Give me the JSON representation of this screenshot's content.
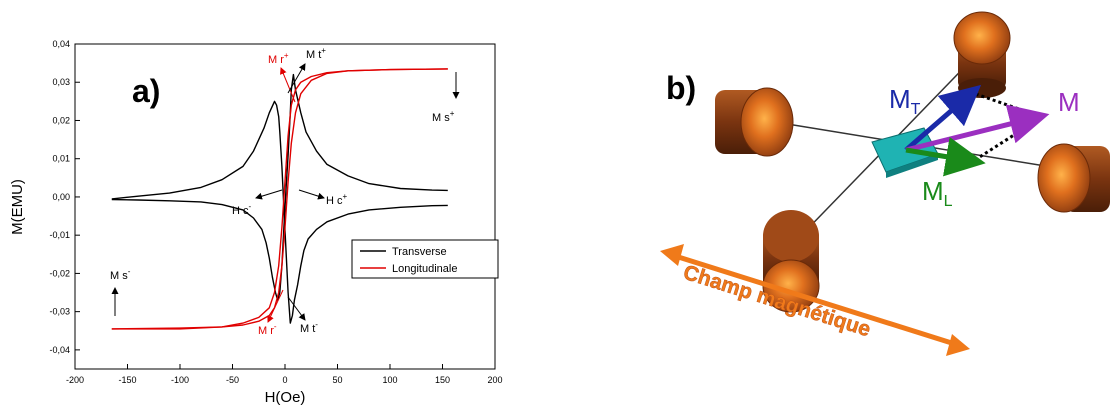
{
  "chart_data": {
    "type": "line",
    "panel_label": "a)",
    "xlabel": "H(Oe)",
    "ylabel": "M(EMU)",
    "xlim": [
      -200,
      200
    ],
    "ylim": [
      -0.045,
      0.04
    ],
    "xticks": [
      -200,
      -150,
      -100,
      -50,
      0,
      50,
      100,
      150,
      200
    ],
    "yticks": [
      -0.04,
      -0.03,
      -0.02,
      -0.01,
      0.0,
      0.01,
      0.02,
      0.03,
      0.04
    ],
    "ytick_labels": [
      "-0,04",
      "-0,03",
      "-0,02",
      "-0,01",
      "0,00",
      "0,01",
      "0,02",
      "0,03",
      "0,04"
    ],
    "grid": false,
    "legend_position": "right-center",
    "series": [
      {
        "name": "Transverse",
        "color": "#000000",
        "branches": [
          {
            "x": [
              -165,
              -140,
              -110,
              -80,
              -60,
              -40,
              -30,
              -22,
              -18,
              -15,
              -12,
              -9,
              -7,
              -5,
              -3,
              -1,
              1,
              3,
              5,
              6,
              8,
              10,
              15,
              20,
              30,
              40,
              60,
              80,
              110,
              140,
              155
            ],
            "y": [
              -0.0007,
              -0.0008,
              -0.001,
              -0.0013,
              -0.002,
              -0.0034,
              -0.0055,
              -0.0085,
              -0.012,
              -0.016,
              -0.021,
              -0.025,
              -0.027,
              -0.025,
              -0.018,
              -0.008,
              0.002,
              0.011,
              0.022,
              0.028,
              0.032,
              0.028,
              0.022,
              0.017,
              0.012,
              0.0085,
              0.0055,
              0.0035,
              0.0022,
              0.0018,
              0.0017
            ]
          },
          {
            "x": [
              155,
              140,
              110,
              80,
              60,
              40,
              30,
              22,
              18,
              15,
              12,
              9,
              7,
              5,
              3,
              1,
              -1,
              -3,
              -5,
              -6,
              -8,
              -10,
              -15,
              -20,
              -30,
              -40,
              -60,
              -80,
              -110,
              -140,
              -165
            ],
            "y": [
              -0.0022,
              -0.0023,
              -0.0027,
              -0.0034,
              -0.0045,
              -0.0065,
              -0.0085,
              -0.011,
              -0.014,
              -0.018,
              -0.023,
              -0.027,
              -0.031,
              -0.033,
              -0.025,
              -0.014,
              -0.003,
              0.008,
              0.017,
              0.021,
              0.024,
              0.025,
              0.022,
              0.018,
              0.012,
              0.008,
              0.0045,
              0.0025,
              0.001,
              0.0002,
              -0.0005
            ]
          }
        ]
      },
      {
        "name": "Longitudinale",
        "color": "#e00000",
        "branches": [
          {
            "x": [
              155,
              100,
              60,
              40,
              25,
              15,
              10,
              6,
              3,
              0,
              -3,
              -6,
              -10,
              -15,
              -25,
              -40,
              -60,
              -100,
              -165
            ],
            "y": [
              0.0335,
              0.0333,
              0.033,
              0.0325,
              0.0315,
              0.03,
              0.028,
              0.024,
              0.016,
              0.004,
              -0.008,
              -0.018,
              -0.025,
              -0.029,
              -0.0315,
              -0.033,
              -0.034,
              -0.0345,
              -0.0345
            ]
          },
          {
            "x": [
              -165,
              -100,
              -60,
              -40,
              -25,
              -15,
              -10,
              -6,
              -3,
              0,
              3,
              6,
              10,
              15,
              25,
              40,
              60,
              100,
              155
            ],
            "y": [
              -0.0345,
              -0.0343,
              -0.034,
              -0.0335,
              -0.0325,
              -0.031,
              -0.029,
              -0.025,
              -0.018,
              -0.008,
              0.004,
              0.014,
              0.022,
              0.027,
              0.0305,
              0.0323,
              0.033,
              0.0333,
              0.0335
            ]
          }
        ]
      }
    ],
    "annotations": [
      {
        "base": "M r",
        "sup": "+",
        "color": "#e00000"
      },
      {
        "base": "M t",
        "sup": "+",
        "color": "#000000"
      },
      {
        "base": "M s",
        "sup": "+",
        "color": "#000000"
      },
      {
        "base": "M s",
        "sup": "-",
        "color": "#000000"
      },
      {
        "base": "H c",
        "sup": "-",
        "color": "#000000"
      },
      {
        "base": "H c",
        "sup": "+",
        "color": "#000000"
      },
      {
        "base": "M r",
        "sup": "-",
        "color": "#e00000"
      },
      {
        "base": "M t",
        "sup": "-",
        "color": "#000000"
      }
    ]
  },
  "diagram": {
    "panel_label": "b)",
    "vector_m": "M",
    "vector_mt_base": "M",
    "vector_mt_sub": "T",
    "vector_ml_base": "M",
    "vector_ml_sub": "L",
    "field_label": "Champ magnétique",
    "colors": {
      "coil": "#c0561a",
      "sample": "#1fb3b3",
      "m": "#9b2fc0",
      "mt": "#1a2aa8",
      "ml": "#1a8a1a",
      "field": "#f07a1a"
    }
  }
}
